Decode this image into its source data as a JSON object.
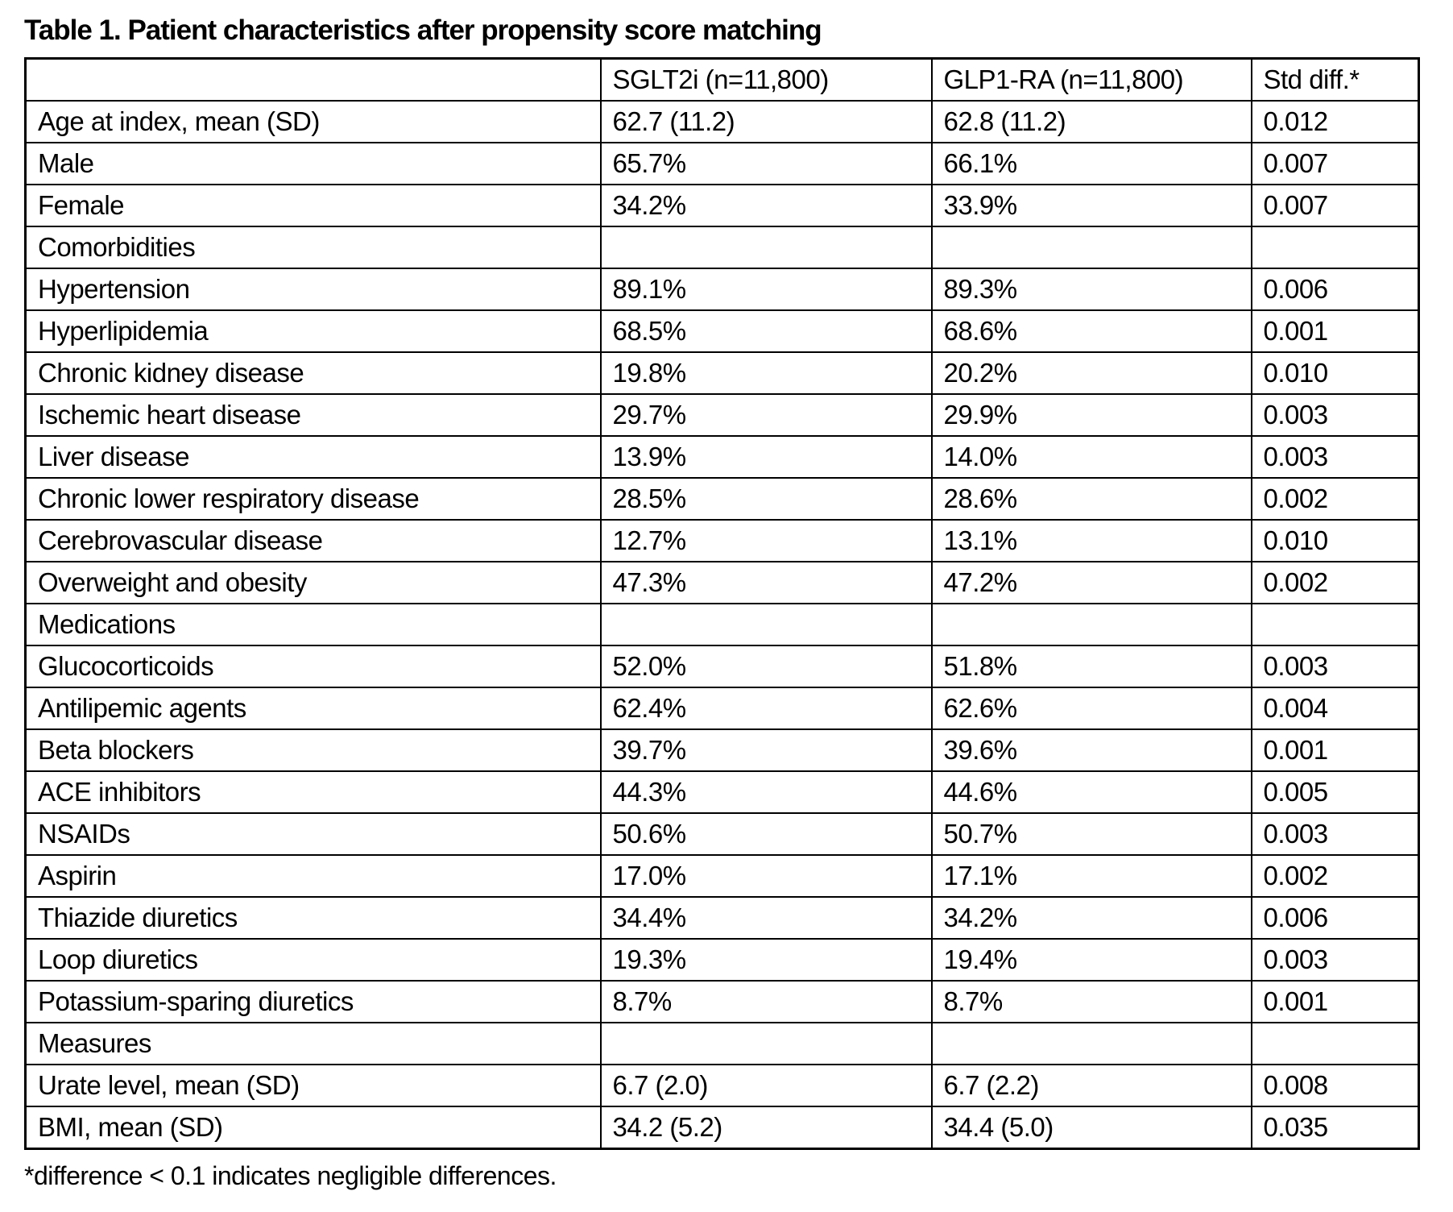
{
  "title": "Table 1. Patient characteristics after propensity score matching",
  "footnote": "*difference < 0.1 indicates negligible differences.",
  "colors": {
    "text": "#000000",
    "border": "#000000",
    "background": "#ffffff"
  },
  "table": {
    "columns": [
      "",
      "SGLT2i (n=11,800)",
      "GLP1-RA (n=11,800)",
      "Std diff.*"
    ],
    "rows": [
      {
        "label": "Age at index, mean (SD)",
        "section": false,
        "values": [
          "62.7 (11.2)",
          "62.8 (11.2)",
          "0.012"
        ]
      },
      {
        "label": "Male",
        "section": false,
        "values": [
          "65.7%",
          "66.1%",
          "0.007"
        ]
      },
      {
        "label": "Female",
        "section": false,
        "values": [
          "34.2%",
          "33.9%",
          "0.007"
        ]
      },
      {
        "label": "Comorbidities",
        "section": true,
        "values": [
          "",
          "",
          ""
        ]
      },
      {
        "label": "Hypertension",
        "section": false,
        "values": [
          "89.1%",
          "89.3%",
          "0.006"
        ]
      },
      {
        "label": "Hyperlipidemia",
        "section": false,
        "values": [
          "68.5%",
          "68.6%",
          "0.001"
        ]
      },
      {
        "label": "Chronic kidney disease",
        "section": false,
        "values": [
          "19.8%",
          "20.2%",
          "0.010"
        ]
      },
      {
        "label": "Ischemic heart disease",
        "section": false,
        "values": [
          "29.7%",
          "29.9%",
          "0.003"
        ]
      },
      {
        "label": "Liver disease",
        "section": false,
        "values": [
          "13.9%",
          "14.0%",
          "0.003"
        ]
      },
      {
        "label": "Chronic lower respiratory disease",
        "section": false,
        "values": [
          "28.5%",
          "28.6%",
          "0.002"
        ]
      },
      {
        "label": "Cerebrovascular disease",
        "section": false,
        "values": [
          "12.7%",
          "13.1%",
          "0.010"
        ]
      },
      {
        "label": "Overweight and obesity",
        "section": false,
        "values": [
          "47.3%",
          "47.2%",
          "0.002"
        ]
      },
      {
        "label": "Medications",
        "section": true,
        "values": [
          "",
          "",
          ""
        ]
      },
      {
        "label": "Glucocorticoids",
        "section": false,
        "values": [
          "52.0%",
          "51.8%",
          "0.003"
        ]
      },
      {
        "label": "Antilipemic agents",
        "section": false,
        "values": [
          "62.4%",
          "62.6%",
          "0.004"
        ]
      },
      {
        "label": "Beta blockers",
        "section": false,
        "values": [
          "39.7%",
          "39.6%",
          "0.001"
        ]
      },
      {
        "label": "ACE inhibitors",
        "section": false,
        "values": [
          "44.3%",
          "44.6%",
          "0.005"
        ]
      },
      {
        "label": "NSAIDs",
        "section": false,
        "values": [
          "50.6%",
          "50.7%",
          "0.003"
        ]
      },
      {
        "label": "Aspirin",
        "section": false,
        "values": [
          "17.0%",
          "17.1%",
          "0.002"
        ]
      },
      {
        "label": "Thiazide diuretics",
        "section": false,
        "values": [
          "34.4%",
          "34.2%",
          "0.006"
        ]
      },
      {
        "label": "Loop diuretics",
        "section": false,
        "values": [
          "19.3%",
          "19.4%",
          "0.003"
        ]
      },
      {
        "label": "Potassium-sparing diuretics",
        "section": false,
        "values": [
          "8.7%",
          "8.7%",
          "0.001"
        ]
      },
      {
        "label": "Measures",
        "section": true,
        "values": [
          "",
          "",
          ""
        ]
      },
      {
        "label": "Urate level, mean (SD)",
        "section": false,
        "values": [
          "6.7 (2.0)",
          "6.7 (2.2)",
          "0.008"
        ]
      },
      {
        "label": "BMI, mean (SD)",
        "section": false,
        "values": [
          "34.2 (5.2)",
          "34.4 (5.0)",
          "0.035"
        ]
      }
    ]
  }
}
